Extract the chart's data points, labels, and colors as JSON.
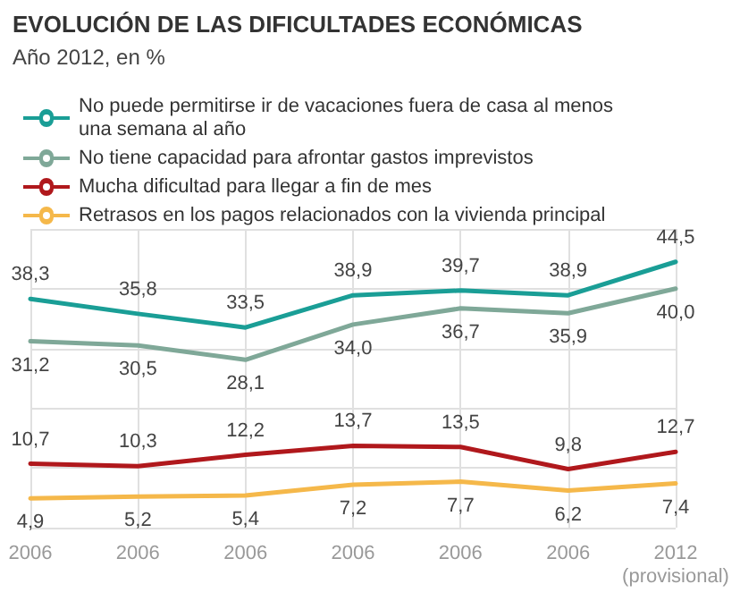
{
  "chart_data": {
    "type": "line",
    "title": "EVOLUCIÓN DE LAS DIFICULTADES ECONÓMICAS",
    "subtitle": "Año 2012, en %",
    "categories": [
      "2006",
      "2006",
      "2006",
      "2006",
      "2006",
      "2006",
      "2012 (provisional)"
    ],
    "series": [
      {
        "name": "No puede permitirse ir de vacaciones fuera de casa al menos una semana al año",
        "color": "#1a9e96",
        "values": [
          38.3,
          35.8,
          33.5,
          38.9,
          39.7,
          38.9,
          44.5
        ],
        "value_labels": [
          "38,3",
          "35,8",
          "33,5",
          "38,9",
          "39,7",
          "38,9",
          "44,5"
        ]
      },
      {
        "name": "No tiene capacidad para afrontar gastos imprevistos",
        "color": "#7fa898",
        "values": [
          31.2,
          30.5,
          28.1,
          34.0,
          36.7,
          35.9,
          40.0
        ],
        "value_labels": [
          "31,2",
          "30,5",
          "28,1",
          "34,0",
          "36,7",
          "35,9",
          "40,0"
        ]
      },
      {
        "name": "Mucha dificultad para llegar a fin de mes",
        "color": "#b0181c",
        "values": [
          10.7,
          10.3,
          12.2,
          13.7,
          13.5,
          9.8,
          12.7
        ],
        "value_labels": [
          "10,7",
          "10,3",
          "12,2",
          "13,7",
          "13,5",
          "9,8",
          "12,7"
        ]
      },
      {
        "name": "Retrasos en los pagos relacionados con la vivienda principal",
        "color": "#f5b84a",
        "values": [
          4.9,
          5.2,
          5.4,
          7.2,
          7.7,
          6.2,
          7.4
        ],
        "value_labels": [
          "4,9",
          "5,2",
          "5,4",
          "7,2",
          "7,7",
          "6,2",
          "7,4"
        ]
      }
    ],
    "grid": true,
    "legend": "top left",
    "marker": "none",
    "line_style": "solid",
    "tick_labels": "x"
  }
}
